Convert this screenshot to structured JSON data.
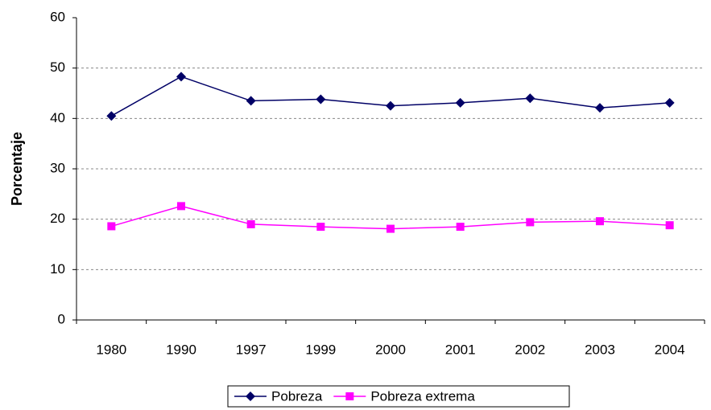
{
  "chart_data": {
    "type": "line",
    "y_label": "Porcentaje",
    "categories": [
      "1980",
      "1990",
      "1997",
      "1999",
      "2000",
      "2001",
      "2002",
      "2003",
      "2004"
    ],
    "series": [
      {
        "name": "Pobreza",
        "color": "#000066",
        "marker": "diamond",
        "values": [
          40.5,
          48.3,
          43.5,
          43.8,
          42.5,
          43.1,
          44.0,
          42.1,
          43.1
        ]
      },
      {
        "name": "Pobreza extrema",
        "color": "#ff00ff",
        "marker": "square",
        "values": [
          18.6,
          22.6,
          19.0,
          18.5,
          18.1,
          18.5,
          19.4,
          19.6,
          18.8
        ]
      }
    ],
    "ylim": [
      0,
      60
    ],
    "yticks": [
      0,
      10,
      20,
      30,
      40,
      50,
      60
    ],
    "grid": true,
    "legend": "bottom"
  }
}
